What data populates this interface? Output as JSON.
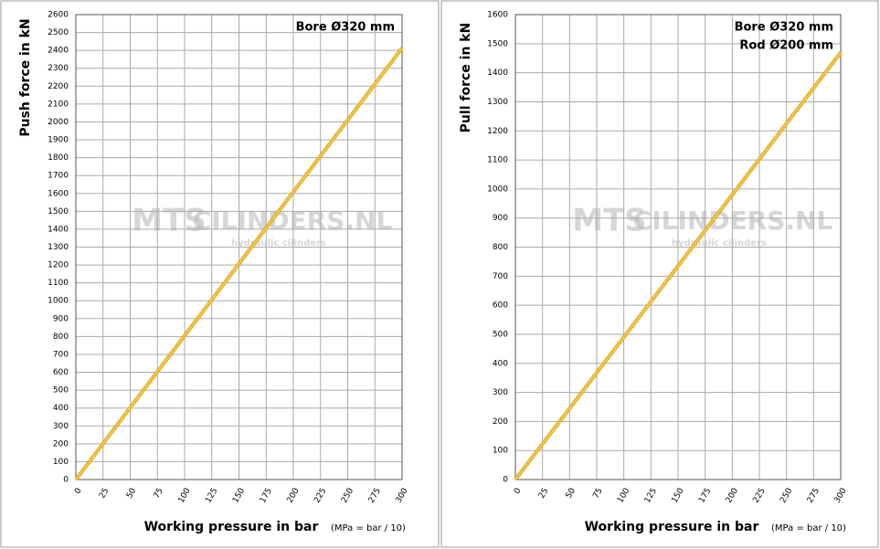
{
  "chart_data": [
    {
      "type": "line",
      "x": [
        0,
        300
      ],
      "series": [
        {
          "color": "#f3c544",
          "values": [
            0,
            2413
          ]
        }
      ],
      "xlim": [
        0,
        300
      ],
      "xticks": [
        0,
        25,
        50,
        75,
        100,
        125,
        150,
        175,
        200,
        225,
        250,
        275,
        300
      ],
      "ylim": [
        0,
        2600
      ],
      "yticks": [
        0,
        100,
        200,
        300,
        400,
        500,
        600,
        700,
        800,
        900,
        1000,
        1100,
        1200,
        1300,
        1400,
        1500,
        1600,
        1700,
        1800,
        1900,
        2000,
        2100,
        2200,
        2300,
        2400,
        2500,
        2600
      ],
      "grid": true,
      "x_label": "Working pressure in bar",
      "x_label_note": "(MPa = bar / 10)",
      "y_label": "Push force in kN",
      "annotations": [
        "Bore Ø320 mm"
      ],
      "watermark": [
        "MTS",
        "CILINDERS.NL",
        "hydraulic cilinders"
      ]
    },
    {
      "type": "line",
      "x": [
        0,
        300
      ],
      "series": [
        {
          "color": "#f3c544",
          "values": [
            0,
            1470
          ]
        }
      ],
      "xlim": [
        0,
        300
      ],
      "xticks": [
        0,
        25,
        50,
        75,
        100,
        125,
        150,
        175,
        200,
        225,
        250,
        275,
        300
      ],
      "ylim": [
        0,
        1600
      ],
      "yticks": [
        0,
        100,
        200,
        300,
        400,
        500,
        600,
        700,
        800,
        900,
        1000,
        1100,
        1200,
        1300,
        1400,
        1500,
        1600
      ],
      "grid": true,
      "x_label": "Working pressure in bar",
      "x_label_note": "(MPa = bar / 10)",
      "y_label": "Pull force in kN",
      "annotations": [
        "Bore Ø320 mm",
        "Rod  Ø200 mm"
      ],
      "watermark": [
        "MTS",
        "CILINDERS.NL",
        "hydraulic cilinders"
      ]
    }
  ]
}
